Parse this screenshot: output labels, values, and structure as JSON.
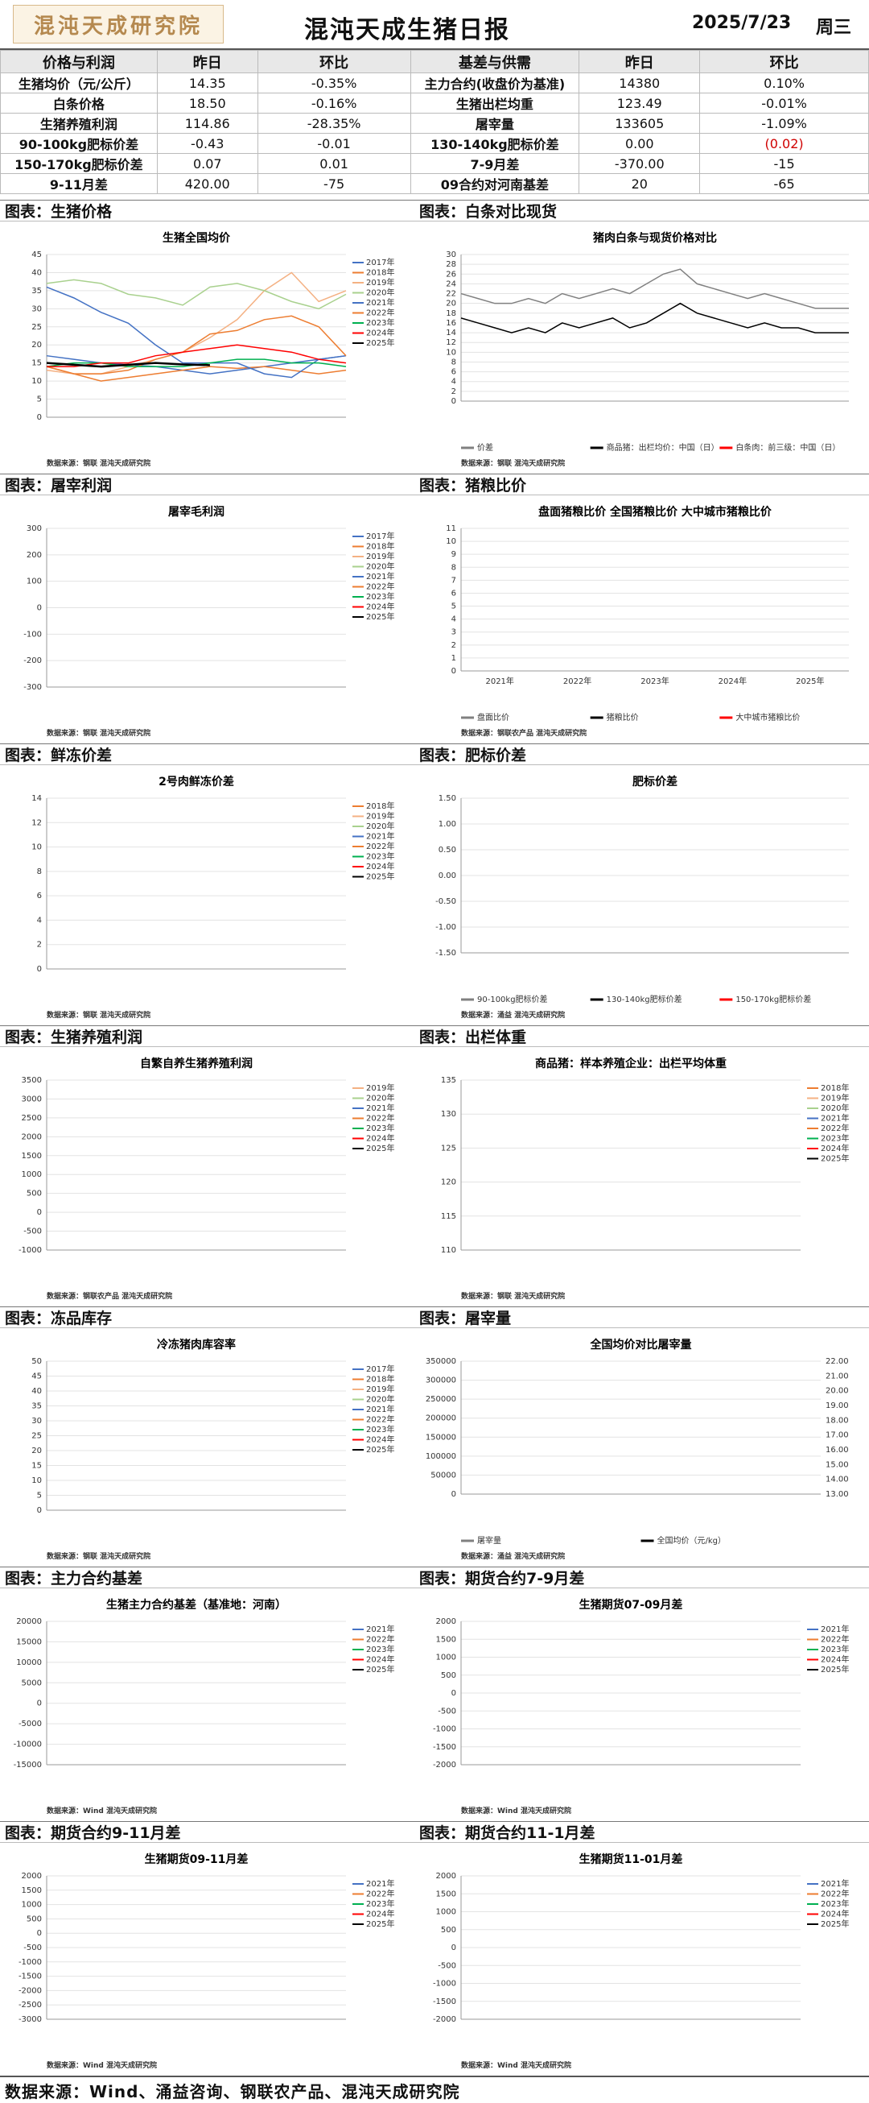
{
  "header": {
    "logo": "混沌天成研究院",
    "title": "混沌天成生猪日报",
    "date": "2025/7/23",
    "weekday": "周三"
  },
  "table": {
    "head": [
      "价格与利润",
      "昨日",
      "环比",
      "基差与供需",
      "昨日",
      "环比"
    ],
    "rows": [
      [
        "生猪均价（元/公斤）",
        "14.35",
        "-0.35%",
        "主力合约(收盘价为基准)",
        "14380",
        "0.10%"
      ],
      [
        "白条价格",
        "18.50",
        "-0.16%",
        "生猪出栏均重",
        "123.49",
        "-0.01%"
      ],
      [
        "生猪养殖利润",
        "114.86",
        "-28.35%",
        "屠宰量",
        "133605",
        "-1.09%"
      ],
      [
        "90-100kg肥标价差",
        "-0.43",
        "-0.01",
        "130-140kg肥标价差",
        "0.00",
        "(0.02)"
      ],
      [
        "150-170kg肥标价差",
        "0.07",
        "0.01",
        "7-9月差",
        "-370.00",
        "-15"
      ],
      [
        "9-11月差",
        "420.00",
        "-75",
        "09合约对河南基差",
        "20",
        "-65"
      ]
    ]
  },
  "sections": [
    "图表：生猪价格",
    "图表：白条对比现货",
    "图表：屠宰利润",
    "图表：猪粮比价",
    "图表：鲜冻价差",
    "图表：肥标价差",
    "图表：生猪养殖利润",
    "图表：出栏体重",
    "图表：冻品库存",
    "图表：屠宰量",
    "图表：主力合约基差",
    "图表：期货合约7-9月差",
    "图表：期货合约9-11月差",
    "图表：期货合约11-1月差"
  ],
  "footer": "数据来源：Wind、涌益咨询、钢联农产品、混沌天成研究院",
  "chart_data": [
    {
      "type": "line",
      "title": "生猪全国均价",
      "ylim": [
        0,
        45
      ],
      "yticks": [
        "0",
        "5",
        "10",
        "15",
        "20",
        "25",
        "30",
        "35",
        "40",
        "45"
      ],
      "legend": [
        "2017年",
        "2018年",
        "2019年",
        "2020年",
        "2021年",
        "2022年",
        "2023年",
        "2024年",
        "2025年"
      ],
      "source": "数据来源：钢联  混沌天成研究院",
      "series": [
        {
          "name": "2017年",
          "values": [
            17,
            16,
            15,
            14.5,
            14,
            13,
            12,
            13,
            14,
            15,
            16,
            17
          ]
        },
        {
          "name": "2018年",
          "values": [
            14,
            12,
            10,
            11,
            12,
            13,
            14,
            13.5,
            14,
            13,
            12,
            13
          ]
        },
        {
          "name": "2019年",
          "values": [
            13,
            12,
            12,
            14,
            16,
            18,
            22,
            27,
            35,
            40,
            32,
            35
          ]
        },
        {
          "name": "2020年",
          "values": [
            37,
            38,
            37,
            34,
            33,
            31,
            36,
            37,
            35,
            32,
            30,
            34
          ]
        },
        {
          "name": "2021年",
          "values": [
            36,
            33,
            29,
            26,
            20,
            15,
            15,
            15,
            12,
            11,
            16,
            17
          ]
        },
        {
          "name": "2022年",
          "values": [
            14,
            12,
            12,
            13,
            16,
            18,
            23,
            24,
            27,
            28,
            25,
            17
          ]
        },
        {
          "name": "2023年",
          "values": [
            14,
            15,
            15,
            14,
            14,
            14,
            15,
            16,
            16,
            15,
            15,
            14
          ]
        },
        {
          "name": "2024年",
          "values": [
            14,
            14,
            15,
            15,
            17,
            18,
            19,
            20,
            19,
            18,
            16,
            15
          ]
        },
        {
          "name": "2025年",
          "values": [
            15,
            14.5,
            14,
            14.5,
            15,
            14.6,
            14.4
          ]
        }
      ]
    },
    {
      "type": "line",
      "title": "猪肉白条与现货价格对比",
      "ylim": [
        0,
        30
      ],
      "yticks": [
        "0",
        "2",
        "4",
        "6",
        "8",
        "10",
        "12",
        "14",
        "16",
        "18",
        "20",
        "22",
        "24",
        "26",
        "28",
        "30"
      ],
      "legend": [
        "价差",
        "商品猪：出栏均价：中国（日）",
        "白条肉：前三级：中国（日）"
      ],
      "source": "数据来源：钢联  混沌天成研究院",
      "series": [
        {
          "name": "白条肉：前三级：中国（日）",
          "values": [
            22,
            21,
            20,
            20,
            21,
            20,
            22,
            21,
            22,
            23,
            22,
            24,
            26,
            27,
            24,
            23,
            22,
            21,
            22,
            21,
            20,
            19,
            19,
            19
          ]
        },
        {
          "name": "商品猪：出栏均价：中国（日）",
          "values": [
            17,
            16,
            15,
            14,
            15,
            14,
            16,
            15,
            16,
            17,
            15,
            16,
            18,
            20,
            18,
            17,
            16,
            15,
            16,
            15,
            15,
            14,
            14,
            14
          ]
        }
      ]
    },
    {
      "type": "line",
      "title": "屠宰毛利润",
      "ylim": [
        -300,
        300
      ],
      "yticks": [
        "-300",
        "-200",
        "-100",
        "0",
        "100",
        "200",
        "300"
      ],
      "legend": [
        "2017年",
        "2018年",
        "2019年",
        "2020年",
        "2021年",
        "2022年",
        "2023年",
        "2024年",
        "2025年"
      ],
      "source": "数据来源：钢联  混沌天成研究院",
      "series": []
    },
    {
      "type": "line",
      "title": "盘面猪粮比价  全国猪粮比价  大中城市猪粮比价",
      "ylim": [
        0,
        11
      ],
      "yticks": [
        "0",
        "1",
        "2",
        "3",
        "4",
        "5",
        "6",
        "7",
        "8",
        "9",
        "10",
        "11"
      ],
      "legend": [
        "盘面比价",
        "猪粮比价",
        "大中城市猪粮比价"
      ],
      "xticks": [
        "2021年",
        "2022年",
        "2023年",
        "2024年",
        "2025年"
      ],
      "source": "数据来源：钢联农产品  混沌天成研究院",
      "series": []
    },
    {
      "type": "line",
      "title": "2号肉鲜冻价差",
      "ylim": [
        0,
        14
      ],
      "yticks": [
        "0",
        "2",
        "4",
        "6",
        "8",
        "10",
        "12",
        "14"
      ],
      "legend": [
        "2018年",
        "2019年",
        "2020年",
        "2021年",
        "2022年",
        "2023年",
        "2024年",
        "2025年"
      ],
      "source": "数据来源：钢联  混沌天成研究院",
      "series": []
    },
    {
      "type": "line",
      "title": "肥标价差",
      "ylim": [
        -1.5,
        1.5
      ],
      "yticks": [
        "-1.50",
        "-1.00",
        "-0.50",
        "0.00",
        "0.50",
        "1.00",
        "1.50"
      ],
      "legend": [
        "90-100kg肥标价差",
        "130-140kg肥标价差",
        "150-170kg肥标价差"
      ],
      "source": "数据来源：涌益  混沌天成研究院",
      "series": []
    },
    {
      "type": "line",
      "title": "自繁自养生猪养殖利润",
      "ylim": [
        -1000,
        3500
      ],
      "yticks": [
        "-1000",
        "-500",
        "0",
        "500",
        "1000",
        "1500",
        "2000",
        "2500",
        "3000",
        "3500"
      ],
      "legend": [
        "2019年",
        "2020年",
        "2021年",
        "2022年",
        "2023年",
        "2024年",
        "2025年"
      ],
      "source": "数据来源：钢联农产品  混沌天成研究院",
      "series": []
    },
    {
      "type": "line",
      "title": "商品猪：样本养殖企业：出栏平均体重",
      "ylim": [
        110,
        135
      ],
      "yticks": [
        "110",
        "115",
        "120",
        "125",
        "130",
        "135"
      ],
      "legend": [
        "2018年",
        "2019年",
        "2020年",
        "2021年",
        "2022年",
        "2023年",
        "2024年",
        "2025年"
      ],
      "source": "数据来源：钢联  混沌天成研究院",
      "series": []
    },
    {
      "type": "line",
      "title": "冷冻猪肉库容率",
      "ylim": [
        0,
        50
      ],
      "yticks": [
        "0",
        "5",
        "10",
        "15",
        "20",
        "25",
        "30",
        "35",
        "40",
        "45",
        "50"
      ],
      "legend": [
        "2017年",
        "2018年",
        "2019年",
        "2020年",
        "2021年",
        "2022年",
        "2023年",
        "2024年",
        "2025年"
      ],
      "source": "数据来源：钢联  混沌天成研究院",
      "series": []
    },
    {
      "type": "bar",
      "title": "全国均价对比屠宰量",
      "ylim": [
        0,
        350000
      ],
      "yticks": [
        "0",
        "50000",
        "100000",
        "150000",
        "200000",
        "250000",
        "300000",
        "350000"
      ],
      "y2ticks": [
        "13.00",
        "14.00",
        "15.00",
        "16.00",
        "17.00",
        "18.00",
        "19.00",
        "20.00",
        "21.00",
        "22.00"
      ],
      "legend": [
        "屠宰量",
        "全国均价（元/kg）"
      ],
      "source": "数据来源：涌益  混沌天成研究院",
      "series": []
    },
    {
      "type": "line",
      "title": "生猪主力合约基差（基准地：河南）",
      "ylim": [
        -15000,
        20000
      ],
      "yticks": [
        "-15000",
        "-10000",
        "-5000",
        "0",
        "5000",
        "10000",
        "15000",
        "20000"
      ],
      "legend": [
        "2021年",
        "2022年",
        "2023年",
        "2024年",
        "2025年"
      ],
      "source": "数据来源：Wind  混沌天成研究院",
      "series": []
    },
    {
      "type": "line",
      "title": "生猪期货07-09月差",
      "ylim": [
        -2000,
        2000
      ],
      "yticks": [
        "-2000",
        "-1500",
        "-1000",
        "-500",
        "0",
        "500",
        "1000",
        "1500",
        "2000"
      ],
      "legend": [
        "2021年",
        "2022年",
        "2023年",
        "2024年",
        "2025年"
      ],
      "source": "数据来源：Wind  混沌天成研究院",
      "series": []
    },
    {
      "type": "line",
      "title": "生猪期货09-11月差",
      "ylim": [
        -3000,
        2000
      ],
      "yticks": [
        "-3000",
        "-2500",
        "-2000",
        "-1500",
        "-1000",
        "-500",
        "0",
        "500",
        "1000",
        "1500",
        "2000"
      ],
      "legend": [
        "2021年",
        "2022年",
        "2023年",
        "2024年",
        "2025年"
      ],
      "source": "数据来源：Wind  混沌天成研究院",
      "series": []
    },
    {
      "type": "line",
      "title": "生猪期货11-01月差",
      "ylim": [
        -2000,
        2000
      ],
      "yticks": [
        "-2000",
        "-1500",
        "-1000",
        "-500",
        "0",
        "500",
        "1000",
        "1500",
        "2000"
      ],
      "legend": [
        "2021年",
        "2022年",
        "2023年",
        "2024年",
        "2025年"
      ],
      "source": "数据来源：Wind  混沌天成研究院",
      "series": []
    }
  ],
  "colors": {
    "2017": "#4472c4",
    "2018": "#ed7d31",
    "2019": "#f4b183",
    "2020": "#a9d18e",
    "2021": "#4472c4",
    "2022": "#ed7d31",
    "2023": "#00b050",
    "2024": "#ff0000",
    "2025": "#000000"
  }
}
